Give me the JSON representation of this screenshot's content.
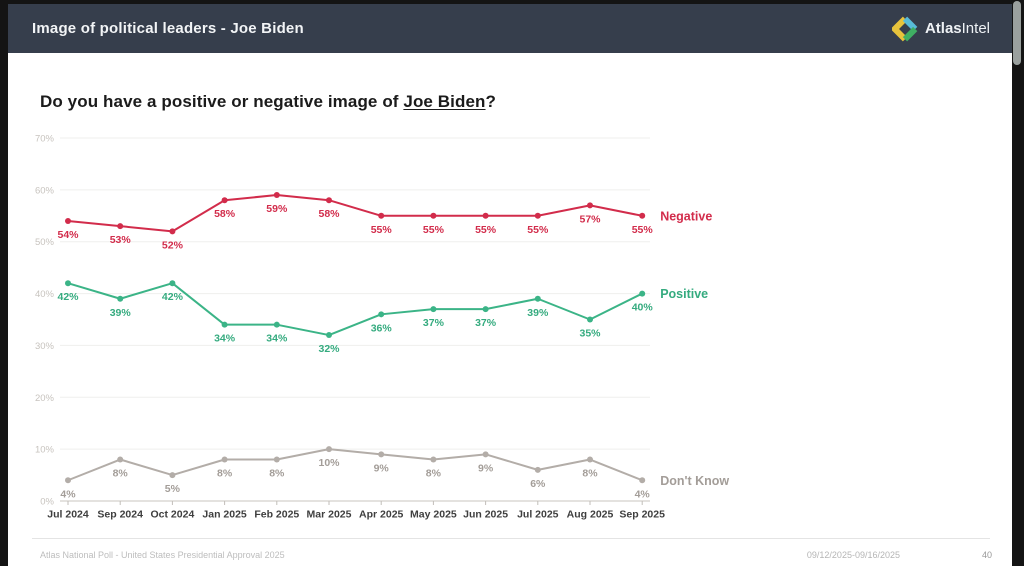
{
  "header": {
    "title": "Image of political leaders - Joe Biden",
    "brand_bold": "Atlas",
    "brand_regular": "Intel"
  },
  "question": {
    "prefix": "Do you have a positive or negative image of ",
    "subject": "Joe Biden",
    "suffix": "?"
  },
  "theme": {
    "header_bg": "#363e4c",
    "negative": "#d22c4b",
    "positive": "#3bb487",
    "dont_know": "#b3ada8",
    "logo_yellow": "#e7c33c",
    "logo_cyan": "#58bcd9",
    "logo_green": "#3faf63"
  },
  "chart_data": {
    "type": "line",
    "title": "Do you have a positive or negative image of Joe Biden?",
    "xlabel": "",
    "ylabel": "",
    "ylim": [
      0,
      70
    ],
    "ytick_step": 10,
    "grid": true,
    "legend_position": "right-of-line-end",
    "yticks": [
      "0%",
      "10%",
      "20%",
      "30%",
      "40%",
      "50%",
      "60%",
      "70%"
    ],
    "categories": [
      "Jul 2024",
      "Sep 2024",
      "Oct 2024",
      "Jan 2025",
      "Feb 2025",
      "Mar 2025",
      "Apr 2025",
      "May 2025",
      "Jun 2025",
      "Jul 2025",
      "Aug 2025",
      "Sep 2025"
    ],
    "series": [
      {
        "key": "negative",
        "name": "Negative",
        "color": "#d22c4b",
        "label_color": "#d22c4b",
        "values": [
          54,
          53,
          52,
          58,
          59,
          58,
          55,
          55,
          55,
          55,
          57,
          55
        ]
      },
      {
        "key": "positive",
        "name": "Positive",
        "color": "#3bb487",
        "label_color": "#35ab7f",
        "values": [
          42,
          39,
          42,
          34,
          34,
          32,
          36,
          37,
          37,
          39,
          35,
          40
        ]
      },
      {
        "key": "dont-know",
        "name": "Don't Know",
        "color": "#b3ada8",
        "label_color": "#a39d98",
        "values": [
          4,
          8,
          5,
          8,
          8,
          10,
          9,
          8,
          9,
          6,
          8,
          4
        ]
      }
    ]
  },
  "footer": {
    "left": "Atlas National Poll - United States Presidential Approval 2025",
    "right": "09/12/2025-09/16/2025",
    "page": "40"
  }
}
